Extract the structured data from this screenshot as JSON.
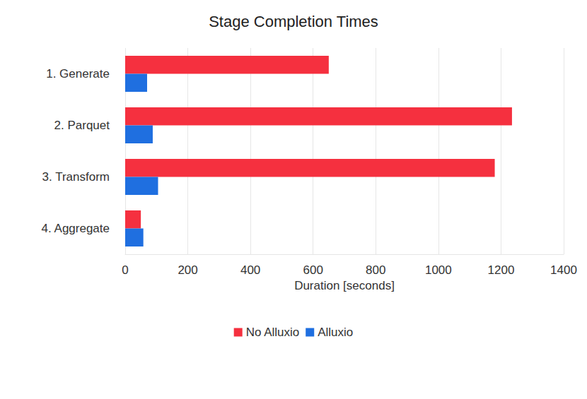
{
  "chart_data": {
    "type": "bar",
    "title": "Stage Completion Times",
    "orientation": "horizontal",
    "categories": [
      "1. Generate",
      "2. Parquet",
      "3. Transform",
      "4. Aggregate"
    ],
    "series": [
      {
        "name": "No Alluxio",
        "color": "#f5303f",
        "values": [
          650,
          1235,
          1180,
          50
        ]
      },
      {
        "name": "Alluxio",
        "color": "#1f6fe0",
        "values": [
          70,
          88,
          105,
          58
        ]
      }
    ],
    "x_label": "Duration [seconds]",
    "xlim": [
      0,
      1400
    ],
    "xticks": [
      0,
      200,
      400,
      600,
      800,
      1000,
      1200,
      1400
    ],
    "grid": true,
    "legend": "bottom"
  }
}
